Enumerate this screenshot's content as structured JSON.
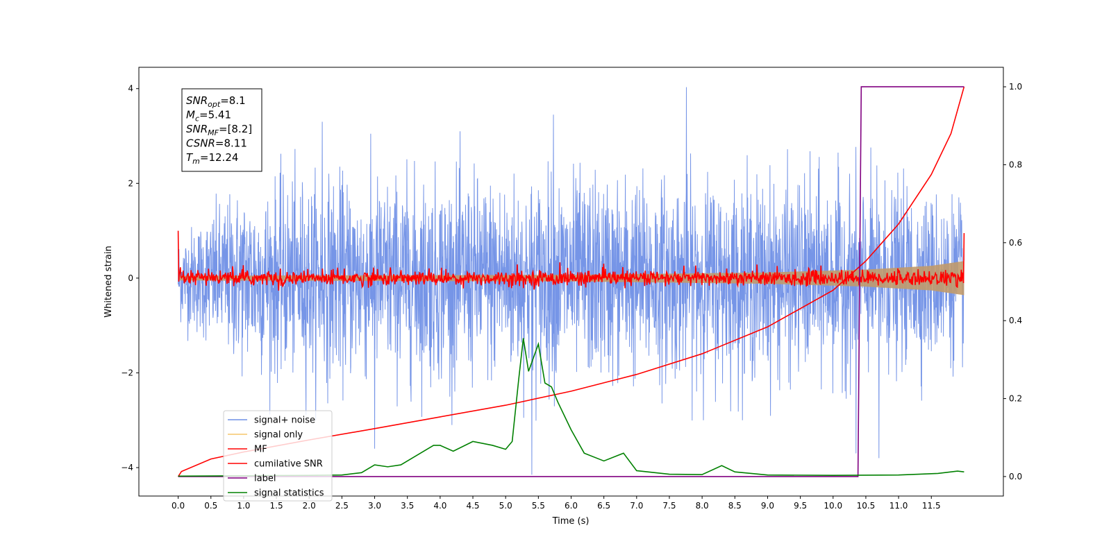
{
  "chart_data": {
    "type": "line",
    "xlabel": "Time (s)",
    "ylabel": "Whitened strain",
    "xlim": [
      -0.6,
      12.6
    ],
    "ylim": [
      -4.6,
      4.45
    ],
    "y2lim": [
      -0.05,
      1.05
    ],
    "x_ticks": [
      0.0,
      0.5,
      1.0,
      1.5,
      2.0,
      2.5,
      3.0,
      3.5,
      4.0,
      4.5,
      5.0,
      5.5,
      6.0,
      6.5,
      7.0,
      7.5,
      8.0,
      8.5,
      9.0,
      9.5,
      10.0,
      10.5,
      11.0,
      11.5
    ],
    "x_tick_labels": [
      "0.0",
      "0.5",
      "1.0",
      "1.5",
      "2.0",
      "2.5",
      "3.0",
      "3.5",
      "4.0",
      "4.5",
      "5.0",
      "5.5",
      "6.0",
      "6.5",
      "7.0",
      "7.5",
      "8.0",
      "8.5",
      "9.0",
      "9.5",
      "10.0",
      "10.5",
      "11.0",
      "11.5"
    ],
    "y_ticks": [
      -4,
      -2,
      0,
      2,
      4
    ],
    "y_tick_labels": [
      "−4",
      "−2",
      "0",
      "2",
      "4"
    ],
    "y2_ticks": [
      0.0,
      0.2,
      0.4,
      0.6,
      0.8,
      1.0
    ],
    "y2_tick_labels": [
      "0.0",
      "0.2",
      "0.4",
      "0.6",
      "0.8",
      "1.0"
    ],
    "legend_placement": "lower-left",
    "grid": false,
    "annotation": {
      "lines": [
        {
          "base": "SNR",
          "sub": "opt",
          "value": "=8.1"
        },
        {
          "base": "M",
          "sub": "c",
          "value": "=5.41"
        },
        {
          "base": "SNR",
          "sub": "MF",
          "value": "=[8.2]"
        },
        {
          "base": "CSNR",
          "sub": "",
          "value": "=8.11"
        },
        {
          "base": "T",
          "sub": "m",
          "value": "=12.24"
        }
      ]
    },
    "series": [
      {
        "name": "signal+ noise",
        "axis": "left",
        "color": "#6f8fe6",
        "style": "noise",
        "x_range": [
          0.0,
          12.0
        ],
        "envelope_upper": [
          [
            0.0,
            1.3
          ],
          [
            1.0,
            2.7
          ],
          [
            2.0,
            3.0
          ],
          [
            4.0,
            3.1
          ],
          [
            6.0,
            3.1
          ],
          [
            8.0,
            3.0
          ],
          [
            10.0,
            2.9
          ],
          [
            12.0,
            2.4
          ]
        ],
        "envelope_lower": [
          [
            0.0,
            -1.3
          ],
          [
            1.0,
            -2.8
          ],
          [
            2.0,
            -3.0
          ],
          [
            4.0,
            -3.1
          ],
          [
            6.0,
            -3.1
          ],
          [
            8.0,
            -3.0
          ],
          [
            10.0,
            -3.0
          ],
          [
            12.0,
            -2.4
          ]
        ],
        "spikes": [
          [
            7.76,
            4.03
          ],
          [
            5.4,
            -4.15
          ],
          [
            2.2,
            3.3
          ],
          [
            5.73,
            3.45
          ],
          [
            10.35,
            -3.7
          ],
          [
            10.7,
            -3.8
          ],
          [
            3.0,
            -3.6
          ]
        ]
      },
      {
        "name": "signal only",
        "axis": "left",
        "color": "#f5c56a",
        "style": "chirp",
        "x_range": [
          0.0,
          12.0
        ],
        "amplitude": [
          [
            0.0,
            0.05
          ],
          [
            6.0,
            0.07
          ],
          [
            9.0,
            0.12
          ],
          [
            10.5,
            0.18
          ],
          [
            11.5,
            0.26
          ],
          [
            12.0,
            0.36
          ]
        ]
      },
      {
        "name": "MF",
        "axis": "left",
        "color": "#ff0000",
        "style": "noise",
        "x_range": [
          0.0,
          12.0
        ],
        "sigma": 0.08,
        "start_value": 1.0,
        "end_value": 0.95
      },
      {
        "name": "cumilative SNR",
        "axis": "right",
        "color": "#ff0000",
        "style": "line",
        "points": [
          [
            0.0,
            0.0
          ],
          [
            0.05,
            0.013
          ],
          [
            0.5,
            0.045
          ],
          [
            1.0,
            0.063
          ],
          [
            2.0,
            0.094
          ],
          [
            3.0,
            0.123
          ],
          [
            4.0,
            0.153
          ],
          [
            5.0,
            0.183
          ],
          [
            6.0,
            0.219
          ],
          [
            7.0,
            0.262
          ],
          [
            8.0,
            0.315
          ],
          [
            9.0,
            0.384
          ],
          [
            10.0,
            0.478
          ],
          [
            10.5,
            0.553
          ],
          [
            11.0,
            0.648
          ],
          [
            11.5,
            0.775
          ],
          [
            11.8,
            0.88
          ],
          [
            12.0,
            1.0
          ]
        ]
      },
      {
        "name": "label",
        "axis": "right",
        "color": "#800080",
        "style": "line",
        "points": [
          [
            0.0,
            0.0
          ],
          [
            10.38,
            0.0
          ],
          [
            10.43,
            1.0
          ],
          [
            12.0,
            1.0
          ]
        ]
      },
      {
        "name": "signal statistics",
        "axis": "right",
        "color": "#008000",
        "style": "line",
        "points": [
          [
            0.0,
            0.001
          ],
          [
            1.0,
            0.002
          ],
          [
            2.0,
            0.003
          ],
          [
            2.5,
            0.004
          ],
          [
            2.8,
            0.01
          ],
          [
            3.0,
            0.03
          ],
          [
            3.2,
            0.025
          ],
          [
            3.4,
            0.03
          ],
          [
            3.6,
            0.05
          ],
          [
            3.9,
            0.08
          ],
          [
            4.0,
            0.08
          ],
          [
            4.2,
            0.065
          ],
          [
            4.5,
            0.09
          ],
          [
            4.8,
            0.08
          ],
          [
            5.0,
            0.07
          ],
          [
            5.1,
            0.09
          ],
          [
            5.2,
            0.25
          ],
          [
            5.27,
            0.355
          ],
          [
            5.35,
            0.27
          ],
          [
            5.5,
            0.34
          ],
          [
            5.6,
            0.24
          ],
          [
            5.7,
            0.23
          ],
          [
            5.8,
            0.19
          ],
          [
            6.0,
            0.12
          ],
          [
            6.2,
            0.06
          ],
          [
            6.5,
            0.04
          ],
          [
            6.8,
            0.06
          ],
          [
            7.0,
            0.015
          ],
          [
            7.5,
            0.006
          ],
          [
            8.0,
            0.005
          ],
          [
            8.3,
            0.028
          ],
          [
            8.5,
            0.012
          ],
          [
            9.0,
            0.004
          ],
          [
            10.0,
            0.003
          ],
          [
            11.0,
            0.004
          ],
          [
            11.6,
            0.008
          ],
          [
            11.9,
            0.014
          ],
          [
            12.0,
            0.012
          ]
        ]
      }
    ]
  }
}
